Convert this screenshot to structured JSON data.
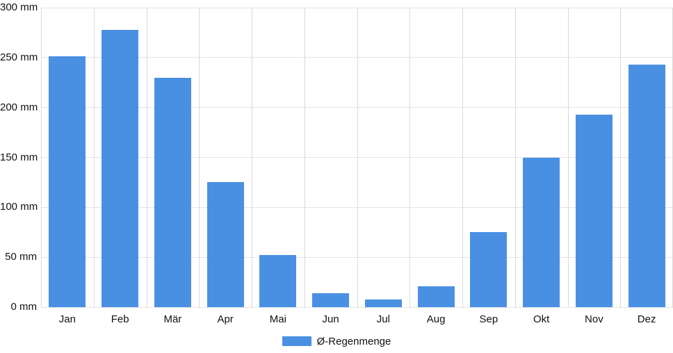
{
  "chart_data": {
    "type": "bar",
    "title": "",
    "categories": [
      "Jan",
      "Feb",
      "Mär",
      "Apr",
      "Mai",
      "Jun",
      "Jul",
      "Aug",
      "Sep",
      "Okt",
      "Nov",
      "Dez"
    ],
    "series": [
      {
        "name": "Ø-Regenmenge",
        "values": [
          251,
          278,
          230,
          125,
          52,
          14,
          8,
          21,
          75,
          150,
          193,
          243
        ]
      }
    ],
    "xlabel": "",
    "ylabel": "",
    "unit": "mm",
    "ylim": [
      0,
      300
    ],
    "y_ticks": [
      0,
      50,
      100,
      150,
      200,
      250,
      300
    ],
    "y_tick_labels": [
      "0 mm",
      "50 mm",
      "100 mm",
      "150 mm",
      "200 mm",
      "250 mm",
      "300 mm"
    ],
    "grid": true,
    "legend_position": "bottom",
    "colors": {
      "bar": "#4a90e2",
      "grid_horizontal": "#e3e3e3",
      "grid_vertical": "#d9d9d9",
      "text": "#111111",
      "background": "#ffffff"
    }
  },
  "legend": {
    "label": "Ø-Regenmenge"
  }
}
